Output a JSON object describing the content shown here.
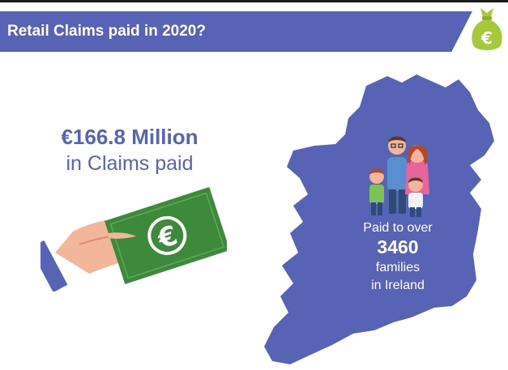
{
  "title": "Retail Claims paid in 2020?",
  "summary": {
    "amount": "€166.8 Million",
    "caption": "in Claims paid"
  },
  "map_callout": {
    "line1": "Paid to over",
    "number": "3460",
    "line3": "families",
    "line4": "in Ireland"
  },
  "icons": {
    "logo": "money-bag-euro-icon",
    "banknote": "euro-symbol",
    "hand": "hand-holding-banknote",
    "map": "ireland-map",
    "family": "family-illustration"
  },
  "colors": {
    "accent": "#5763b4",
    "logo_green": "#a5c93a",
    "banknote_green": "#3d8a3a",
    "skin": "#f4b69a"
  }
}
